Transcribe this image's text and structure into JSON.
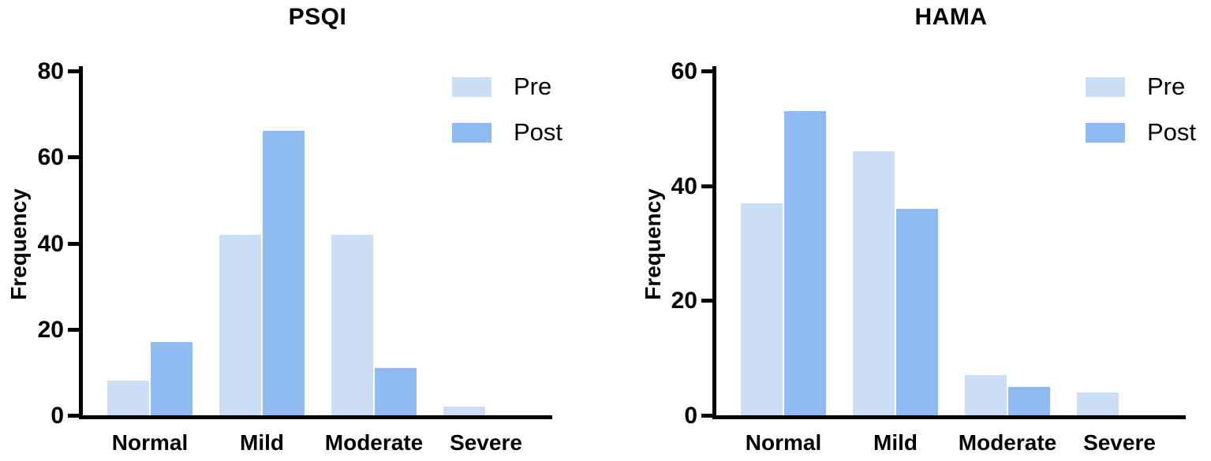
{
  "figure": {
    "background": "#ffffff",
    "axis_color": "#000000",
    "text_color": "#000000",
    "series_colors": {
      "Pre": "#cbdef6",
      "Post": "#8fbbf3"
    }
  },
  "chart_data": [
    {
      "type": "bar",
      "title": "PSQI",
      "xlabel": "",
      "ylabel": "Frequency",
      "categories": [
        "Normal",
        "Mild",
        "Moderate",
        "Severe"
      ],
      "series": [
        {
          "name": "Pre",
          "color": "#cbdef6",
          "values": [
            8,
            42,
            42,
            2
          ]
        },
        {
          "name": "Post",
          "color": "#8fbbf3",
          "values": [
            17,
            66,
            11,
            0
          ]
        }
      ],
      "ylim": [
        0,
        80
      ],
      "yticks": [
        0,
        20,
        40,
        60,
        80
      ],
      "grid": false,
      "legend_position": "top-right",
      "legend_items": [
        "Pre",
        "Post"
      ]
    },
    {
      "type": "bar",
      "title": "HAMA",
      "xlabel": "",
      "ylabel": "Frequency",
      "categories": [
        "Normal",
        "Mild",
        "Moderate",
        "Severe"
      ],
      "series": [
        {
          "name": "Pre",
          "color": "#cbdef6",
          "values": [
            37,
            46,
            7,
            4
          ]
        },
        {
          "name": "Post",
          "color": "#8fbbf3",
          "values": [
            53,
            36,
            5,
            0
          ]
        }
      ],
      "ylim": [
        0,
        60
      ],
      "yticks": [
        0,
        20,
        40,
        60
      ],
      "grid": false,
      "legend_position": "top-right",
      "legend_items": [
        "Pre",
        "Post"
      ]
    }
  ]
}
